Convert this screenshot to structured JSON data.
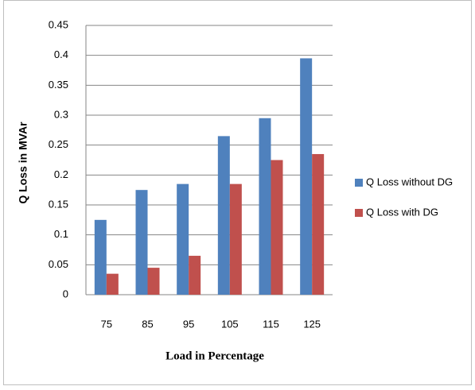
{
  "chart_data": {
    "type": "bar",
    "x_label": "Load in Percentage",
    "y_label": "Q Loss  in MVAr",
    "categories": [
      "75",
      "85",
      "95",
      "105",
      "115",
      "125"
    ],
    "series": [
      {
        "name": "Q Loss without DG",
        "color": "#4f81bd",
        "values": [
          0.125,
          0.175,
          0.185,
          0.265,
          0.295,
          0.395
        ]
      },
      {
        "name": "Q Loss with DG",
        "color": "#c0504d",
        "values": [
          0.035,
          0.045,
          0.065,
          0.185,
          0.225,
          0.235
        ]
      }
    ],
    "ylim": [
      0,
      0.45
    ],
    "yticks": [
      0,
      0.05,
      0.1,
      0.15,
      0.2,
      0.25,
      0.3,
      0.35,
      0.4,
      0.45
    ],
    "grid": true,
    "legend": "right"
  }
}
